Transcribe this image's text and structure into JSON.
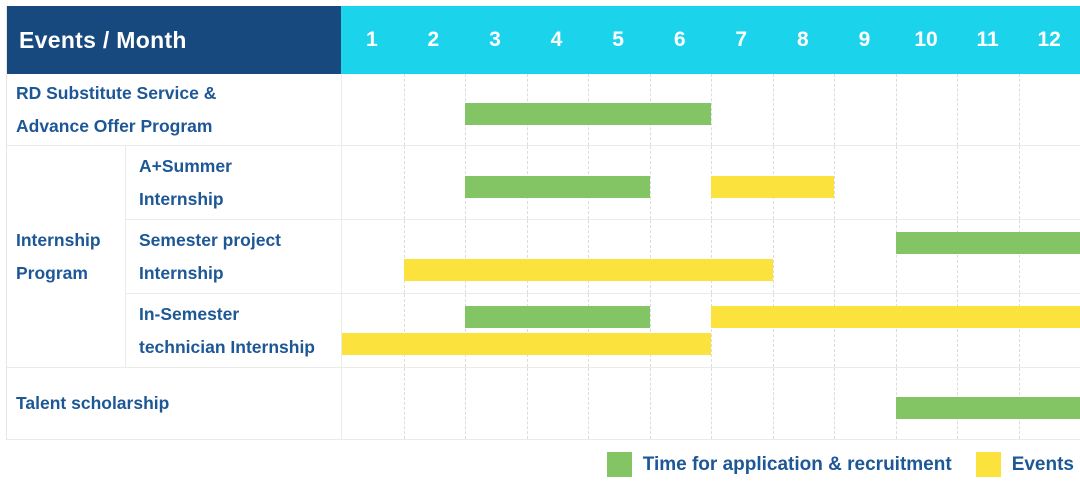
{
  "header": {
    "title": "Events / Month"
  },
  "months": [
    "1",
    "2",
    "3",
    "4",
    "5",
    "6",
    "7",
    "8",
    "9",
    "10",
    "11",
    "12"
  ],
  "colors": {
    "header_navy": "#17497F",
    "header_cyan": "#1CD3EC",
    "green": "#83C464",
    "yellow": "#FBE23D",
    "label_text": "#1D5796",
    "grid_line": "#DCDCDC",
    "row_line": "#EBEBEB"
  },
  "chart_data": {
    "type": "gantt",
    "title": "Events / Month",
    "x_axis": {
      "unit": "month",
      "ticks": [
        "1",
        "2",
        "3",
        "4",
        "5",
        "6",
        "7",
        "8",
        "9",
        "10",
        "11",
        "12"
      ],
      "range": [
        1,
        12
      ],
      "grid": "dashed-vertical"
    },
    "series_legend": [
      {
        "name": "Time for application & recruitment",
        "color_key": "green"
      },
      {
        "name": "Events",
        "color_key": "yellow"
      }
    ],
    "rows": [
      {
        "group": "",
        "label": "RD Substitute Service &\nAdvance Offer Program",
        "bars": [
          {
            "series": "Time for application & recruitment",
            "color": "green",
            "start_month": 3,
            "end_month": 6,
            "line": 0
          }
        ]
      },
      {
        "group": "Internship Program",
        "label": "A+Summer\nInternship",
        "bars": [
          {
            "series": "Time for application & recruitment",
            "color": "green",
            "start_month": 3,
            "end_month": 5,
            "line": 0
          },
          {
            "series": "Events",
            "color": "yellow",
            "start_month": 7,
            "end_month": 8,
            "line": 0
          }
        ]
      },
      {
        "group": "Internship Program",
        "label": "Semester project\nInternship",
        "bars": [
          {
            "series": "Time for application & recruitment",
            "color": "green",
            "start_month": 10,
            "end_month": 12,
            "line": 0
          },
          {
            "series": "Events",
            "color": "yellow",
            "start_month": 2,
            "end_month": 7,
            "line": 1
          }
        ]
      },
      {
        "group": "Internship Program",
        "label": "In-Semester\ntechnician Internship",
        "bars": [
          {
            "series": "Time for application & recruitment",
            "color": "green",
            "start_month": 3,
            "end_month": 5,
            "line": 0
          },
          {
            "series": "Events",
            "color": "yellow",
            "start_month": 7,
            "end_month": 12,
            "line": 0
          },
          {
            "series": "Events",
            "color": "yellow",
            "start_month": 1,
            "end_month": 6,
            "line": 1
          }
        ]
      },
      {
        "group": "",
        "label": "Talent scholarship",
        "bars": [
          {
            "series": "Time for application & recruitment",
            "color": "green",
            "start_month": 10,
            "end_month": 12,
            "line": 0
          }
        ]
      }
    ]
  },
  "legend": {
    "items": [
      {
        "label": "Time for application & recruitment",
        "color_key": "green"
      },
      {
        "label": "Events",
        "color_key": "yellow"
      }
    ]
  }
}
